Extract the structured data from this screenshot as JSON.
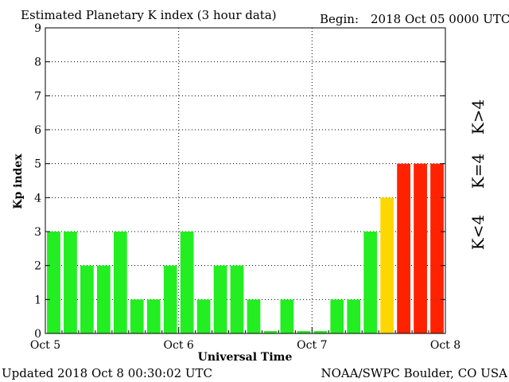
{
  "header": {
    "title": "Estimated Planetary K index (3 hour data)",
    "begin_label": "Begin:",
    "begin_value": "2018 Oct 05 0000 UTC"
  },
  "footer": {
    "updated_label": "Updated",
    "updated_value": "2018 Oct  8 00:30:02 UTC",
    "source": "NOAA/SWPC Boulder, CO USA"
  },
  "legend": {
    "low": "K<4",
    "mid": "K=4",
    "high": "K>4"
  },
  "colors": {
    "low": "#22ee22",
    "mid": "#ffd700",
    "high": "#ff2200",
    "grid": "#000000",
    "axis": "#000000"
  },
  "chart_data": {
    "type": "bar",
    "title": "Estimated Planetary K index (3 hour data)",
    "xlabel": "Universal Time",
    "ylabel": "Kp index",
    "ylim": [
      0,
      9
    ],
    "yticks": [
      0,
      1,
      2,
      3,
      4,
      5,
      6,
      7,
      8,
      9
    ],
    "xticks": [
      "Oct 5",
      "Oct 6",
      "Oct 7",
      "Oct 8"
    ],
    "grid": true,
    "bars_per_day": 8,
    "values": [
      3,
      3,
      2,
      2,
      3,
      1,
      1,
      2,
      3,
      1,
      2,
      2,
      1,
      0.07,
      1,
      0.07,
      0.07,
      1,
      1,
      3,
      4,
      5,
      5,
      5
    ]
  }
}
